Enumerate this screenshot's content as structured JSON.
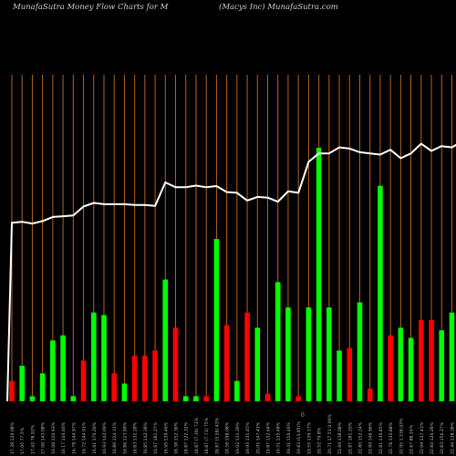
{
  "header": {
    "left": "MunafaSutra  Money Flow  Charts for M",
    "right": "(Macys Inc) MunafaSutra.com"
  },
  "colors": {
    "background": "#000000",
    "buy_bar": "#00ff00",
    "sell_bar": "#ff0000",
    "price_line": "#ffffff",
    "grid_line": "#b5651d"
  },
  "chart_data": {
    "type": "bar",
    "title": "MunafaSutra  Money Flow  Charts for M",
    "subtitle": "(Macys Inc) MunafaSutra.com",
    "grid": "vertical",
    "axis_mid_marker": "0",
    "categories": [
      "17.38 126.08%",
      "17.05 77.5%",
      "17.42 78.92%",
      "17.06 143.08%",
      "16.06 110.93%",
      "16.17 144.46%",
      "16.78 144.97%",
      "16.72 144.91%",
      "16.61 170.26%",
      "16.93 142.09%",
      "16.86 124.31%",
      "16.86 123.99%",
      "16.83 132.28%",
      "16.85 142.38%",
      "16.67 181.27%",
      "16.95 139.46%",
      "18.38 152.36%",
      "18.87 122.32%",
      "18.87 (7.36) 71%",
      "18.87 (7.73) 75%",
      "18.87 (3.58) 43%",
      "18.58 198.08%",
      "19.02 131.39%",
      "19.93 131.45%",
      "20.05 147.43%",
      "19.87 152.64%",
      "19.51 135.48%",
      "19.41 116.46%",
      "19.83 (13.95)%",
      "19.55 139.17%",
      "20.52 79.8%",
      "20.71 17.51 0.00%",
      "22.69 138.08%",
      "22.87 181.20%",
      "22.80 152.24%",
      "22.89 146.96%",
      "22.81 130.85%",
      "22.78 132.88%",
      "22.95 1 238.93%",
      "22.67 88.24%",
      "22.69 137.43%",
      "22.84 126.28%",
      "22.83 156.27%",
      "22.46 138.38%",
      "22.75 91.04%"
    ],
    "series": [
      {
        "role": "money_flow",
        "colors": [
          "red",
          "green",
          "green",
          "green",
          "green",
          "green",
          "green",
          "red",
          "green",
          "green",
          "red",
          "green",
          "red",
          "red",
          "red",
          "green",
          "red",
          "green",
          "green",
          "red",
          "green",
          "red",
          "green",
          "red",
          "green",
          "red",
          "green",
          "green",
          "red",
          "green",
          "green",
          "green",
          "green",
          "red",
          "green",
          "red",
          "green",
          "red",
          "green",
          "green",
          "red",
          "red",
          "green",
          "green",
          "green"
        ],
        "values": [
          8,
          14,
          2,
          11,
          24,
          26,
          2,
          16,
          35,
          34,
          11,
          7,
          18,
          18,
          20,
          48,
          29,
          2,
          2,
          2,
          64,
          30,
          8,
          35,
          29,
          3,
          47,
          37,
          2,
          37,
          100,
          37,
          20,
          21,
          39,
          5,
          85,
          26,
          29,
          25,
          32,
          32,
          28,
          35,
          48
        ]
      },
      {
        "role": "price",
        "values": [
          17.38,
          17.42,
          17.35,
          17.45,
          17.62,
          17.65,
          17.68,
          18.05,
          18.2,
          18.15,
          18.15,
          18.15,
          18.12,
          18.12,
          18.08,
          19.05,
          18.85,
          18.85,
          18.92,
          18.85,
          18.9,
          18.65,
          18.62,
          18.3,
          18.45,
          18.42,
          18.25,
          18.68,
          18.62,
          19.9,
          20.25,
          20.25,
          20.5,
          20.45,
          20.3,
          20.25,
          20.2,
          20.4,
          20.05,
          20.25,
          20.65,
          20.35,
          20.55,
          20.5,
          20.75
        ]
      }
    ],
    "price_range": [
      10,
      23.5
    ],
    "flow_range": [
      0,
      100
    ]
  }
}
